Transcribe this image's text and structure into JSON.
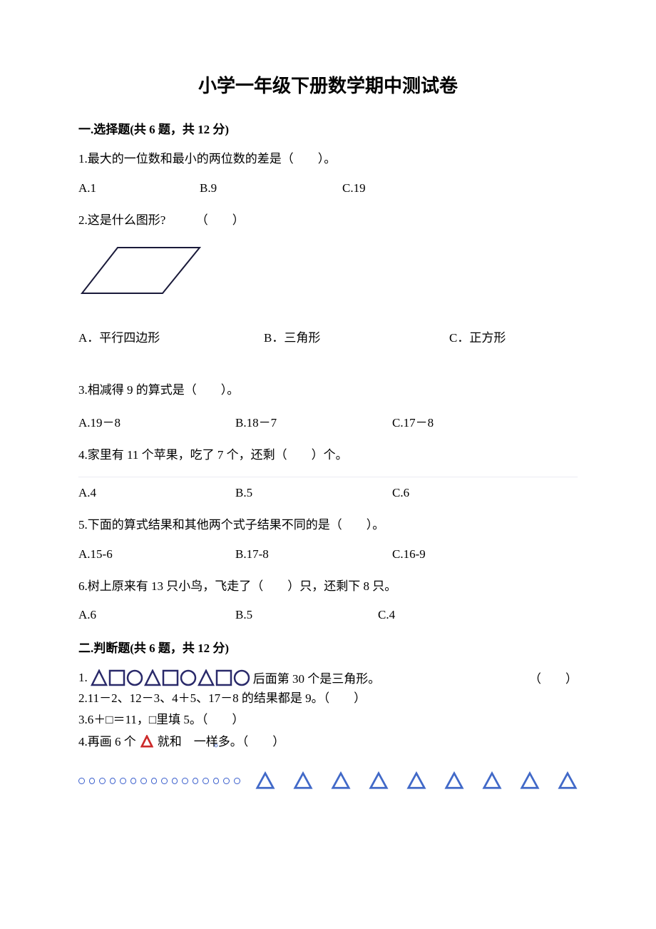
{
  "title": "小学一年级下册数学期中测试卷",
  "section1": {
    "heading": "一.选择题(共 6 题，共 12 分)",
    "q1": {
      "text": "1.最大的一位数和最小的两位数的差是（　　）。",
      "a": "A.1",
      "b": "B.9",
      "c": "C.19"
    },
    "q2": {
      "text": "2.这是什么图形?　　　（　　）",
      "a": "A．平行四边形",
      "b": "B．三角形",
      "c": "C．正方形"
    },
    "q3": {
      "text": "3.相减得 9 的算式是（　　）。",
      "a": "A.19－8",
      "b": "B.18－7",
      "c": "C.17－8"
    },
    "q4": {
      "text": "4.家里有 11 个苹果，吃了 7 个，还剩（　　）个。",
      "a": "A.4",
      "b": "B.5",
      "c": "C.6"
    },
    "q5": {
      "text": "5.下面的算式结果和其他两个式子结果不同的是（　　）。",
      "a": "A.15-6",
      "b": "B.17-8",
      "c": "C.16-9"
    },
    "q6": {
      "text": "6.树上原来有 13 只小鸟，飞走了（　　）只，还剩下 8 只。",
      "a": "A.6",
      "b": "B.5",
      "c": "C.4"
    }
  },
  "section2": {
    "heading": "二.判断题(共 6 题，共 12 分)",
    "q1_num": "1.",
    "q1_after": "后面第 30 个是三角形。",
    "q1_paren": "（　　）",
    "q2": "2.11－2、12－3、4＋5、17－8 的结果都是 9。（　　）",
    "q3": "3.6＋□＝11，□里填 5。（　　）",
    "q4_pre": "4.再画 6 个",
    "q4_mid": "就和　一样多。（　　）"
  },
  "colors": {
    "text": "#000000",
    "shape_outline": "#1a1a3a",
    "pattern_outline": "#2a2a6a",
    "circle_outline": "#3a5fcd",
    "triangle_outline": "#4169c8",
    "red_triangle": "#cc2a2a",
    "tiny_circle": "#5577cc"
  },
  "parallelogram": {
    "width": 165,
    "height": 70,
    "skew": 55,
    "stroke_width": 2
  },
  "pattern_shapes": {
    "sequence": [
      "triangle",
      "square",
      "circle",
      "triangle",
      "square",
      "circle",
      "triangle",
      "square",
      "circle"
    ],
    "size": 22,
    "stroke_width": 2.5
  },
  "bottom_row": {
    "circles": 16,
    "triangles": 9
  }
}
